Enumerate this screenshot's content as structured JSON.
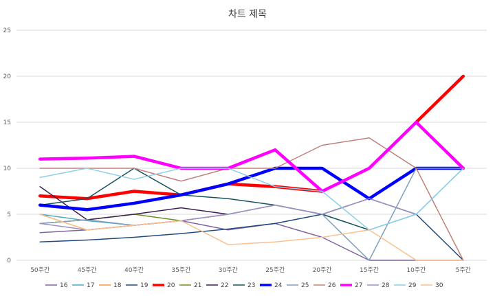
{
  "chart_data": {
    "type": "line",
    "title": "차트 제목",
    "xlabel": "",
    "ylabel": "",
    "categories": [
      "50주간",
      "45주간",
      "40주간",
      "35주간",
      "30주간",
      "25주간",
      "20주간",
      "15주간",
      "10주간",
      "5주간"
    ],
    "ylim": [
      0,
      25
    ],
    "yticks": [
      0,
      5,
      10,
      15,
      20,
      25
    ],
    "grid": true,
    "legend_position": "bottom",
    "series": [
      {
        "name": "16",
        "color": "#8064a2",
        "values": [
          3,
          3.3,
          3.8,
          4.3,
          3.3,
          4,
          2.5,
          0,
          0,
          0
        ]
      },
      {
        "name": "17",
        "color": "#4bacc6",
        "values": [
          5,
          4.3,
          3.8,
          4.3,
          5,
          6,
          5,
          3.3,
          5,
          10
        ]
      },
      {
        "name": "18",
        "color": "#f79646",
        "values": [
          5,
          3.3,
          3.8,
          4.3,
          null,
          null,
          null,
          null,
          null,
          null
        ]
      },
      {
        "name": "19",
        "color": "#1f497d",
        "values": [
          2,
          2.2,
          2.5,
          2.9,
          3.4,
          4,
          5,
          6.7,
          5,
          0
        ]
      },
      {
        "name": "20",
        "color": "#ff0000",
        "values": [
          7,
          6.7,
          7.5,
          7.1,
          8.3,
          8,
          7.5,
          null,
          15,
          20
        ]
      },
      {
        "name": "21",
        "color": "#6e8f1f",
        "values": [
          4,
          4.4,
          5,
          4.3,
          null,
          null,
          null,
          null,
          null,
          null
        ]
      },
      {
        "name": "22",
        "color": "#3f1f4f",
        "values": [
          8,
          4.4,
          5,
          5.7,
          5,
          null,
          null,
          null,
          null,
          null
        ]
      },
      {
        "name": "23",
        "color": "#17535f",
        "values": [
          6,
          6.7,
          10,
          7.1,
          6.7,
          6,
          5,
          3.3,
          null,
          null
        ]
      },
      {
        "name": "24",
        "color": "#0000ff",
        "values": [
          6,
          5.5,
          6.2,
          7.1,
          8.3,
          10,
          10,
          6.7,
          10,
          10
        ]
      },
      {
        "name": "25",
        "color": "#7f9fbf",
        "values": [
          4,
          4.4,
          3.8,
          4.3,
          5,
          6,
          5,
          0,
          10,
          10
        ]
      },
      {
        "name": "26",
        "color": "#c0807a",
        "values": [
          10,
          10,
          10,
          8.6,
          10,
          10,
          12.5,
          13.3,
          10,
          0
        ]
      },
      {
        "name": "27",
        "color": "#ff00ff",
        "values": [
          11,
          11.1,
          11.3,
          10,
          10,
          12,
          7.5,
          10,
          15,
          10
        ]
      },
      {
        "name": "28",
        "color": "#9f8fbf",
        "values": [
          4,
          3.3,
          3.8,
          4.3,
          5,
          6,
          5,
          6.7,
          5,
          null
        ]
      },
      {
        "name": "29",
        "color": "#8ecfe6",
        "values": [
          9,
          10,
          8.8,
          10,
          10,
          8,
          7.5,
          3.3,
          5,
          10
        ]
      },
      {
        "name": "30",
        "color": "#f9c08f",
        "values": [
          5,
          3.3,
          3.8,
          4.3,
          1.7,
          2,
          2.5,
          3.3,
          0,
          0
        ]
      }
    ]
  }
}
